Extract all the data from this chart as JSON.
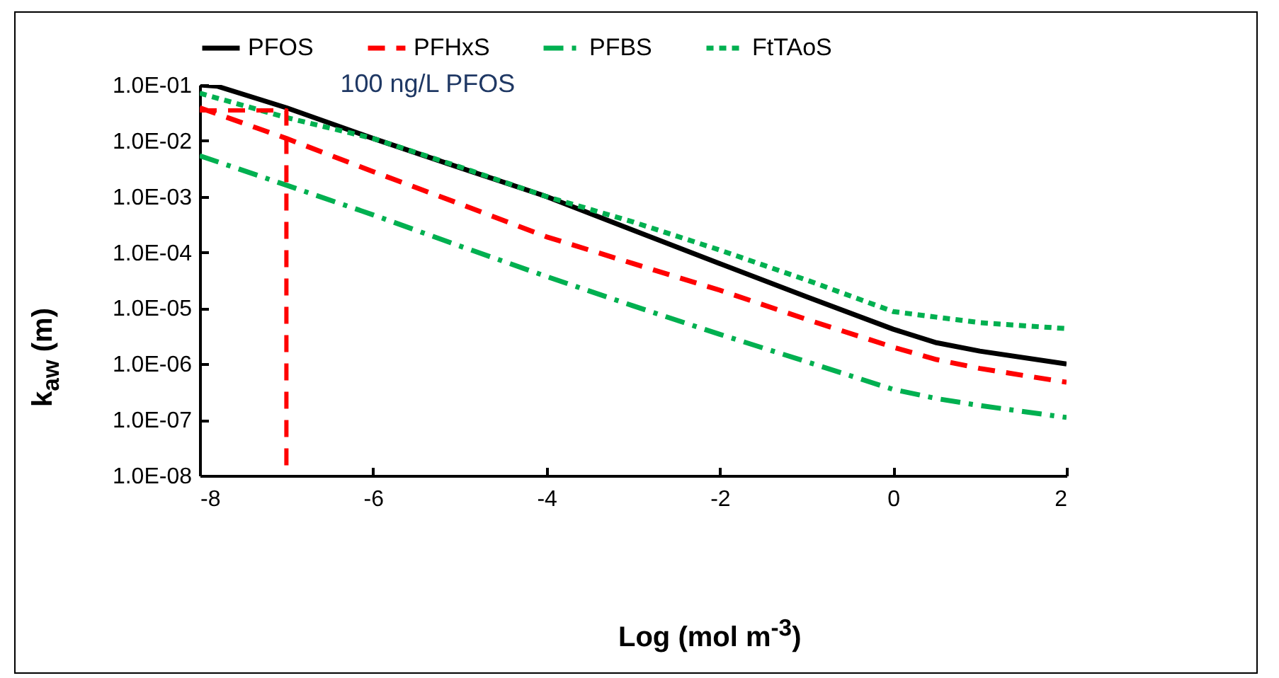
{
  "chart_data": {
    "type": "line",
    "xlabel": "Log (mol m$^{-3}$)",
    "ylabel": "k$_{aw}$ (m)",
    "log": "y",
    "xlim": [
      -8,
      2
    ],
    "xticks": [
      -8,
      -6,
      -4,
      -2,
      0,
      2
    ],
    "ylim": [
      1e-08,
      0.1
    ],
    "yticks": [
      {
        "value": 1e-08,
        "label": "1.0E-08"
      },
      {
        "value": 1e-07,
        "label": "1.0E-07"
      },
      {
        "value": 1e-06,
        "label": "1.0E-06"
      },
      {
        "value": 1e-05,
        "label": "1.0E-05"
      },
      {
        "value": 0.0001,
        "label": "1.0E-04"
      },
      {
        "value": 0.001,
        "label": "1.0E-03"
      },
      {
        "value": 0.01,
        "label": "1.0E-02"
      },
      {
        "value": 0.1,
        "label": "1.0E-01"
      }
    ],
    "grid": false,
    "legend": "top",
    "marker": "none",
    "annotations": [
      {
        "text": "100 ng/L PFOS",
        "x": -7,
        "y": 0.035
      }
    ],
    "series": [
      {
        "name": "PFOS",
        "color": "#000000",
        "line_style": "solid",
        "x": [
          -8,
          -7.8,
          -7,
          -6,
          -5,
          -4,
          -3,
          -2,
          -1,
          0,
          0.5,
          1,
          2
        ],
        "values": [
          0.1,
          0.095,
          0.039,
          0.011,
          0.0033,
          0.001,
          0.00025,
          6.3e-05,
          1.6e-05,
          4.2e-06,
          2.4e-06,
          1.7e-06,
          1e-06
        ]
      },
      {
        "name": "PFHxS",
        "color": "#ff0000",
        "line_style": "dashed",
        "x": [
          -8,
          -7,
          -6,
          -5,
          -4,
          -3,
          -2,
          -1,
          0,
          0.5,
          1,
          2
        ],
        "values": [
          0.039,
          0.011,
          0.0028,
          0.00074,
          0.00019,
          6.3e-05,
          2.1e-05,
          6.3e-06,
          2e-06,
          1.2e-06,
          8.3e-07,
          4.7e-07
        ]
      },
      {
        "name": "PFBS",
        "color": "#00b050",
        "line_style": "dashdot",
        "x": [
          -8,
          -7,
          -6,
          -5,
          -4,
          -3,
          -2,
          -1,
          0,
          0.5,
          1,
          2
        ],
        "values": [
          0.0054,
          0.0016,
          0.00047,
          0.00013,
          3.7e-05,
          1.1e-05,
          3.4e-06,
          1.1e-06,
          3.5e-07,
          2.4e-07,
          1.8e-07,
          1.1e-07
        ]
      },
      {
        "name": "FtTAoS",
        "color": "#00b050",
        "line_style": "dotted",
        "x": [
          -8,
          -7,
          -6,
          -5,
          -4,
          -3,
          -2,
          -1,
          0,
          0.5,
          1,
          2
        ],
        "values": [
          0.071,
          0.026,
          0.011,
          0.0034,
          0.001,
          0.00035,
          0.00011,
          3.2e-05,
          8.7e-06,
          6.9e-06,
          5.5e-06,
          4.3e-06
        ]
      },
      {
        "color": "#ff0000",
        "line_style": "dashed",
        "x": [
          -8,
          -7,
          -7
        ],
        "values": [
          0.035,
          0.035,
          1e-08
        ]
      }
    ]
  }
}
